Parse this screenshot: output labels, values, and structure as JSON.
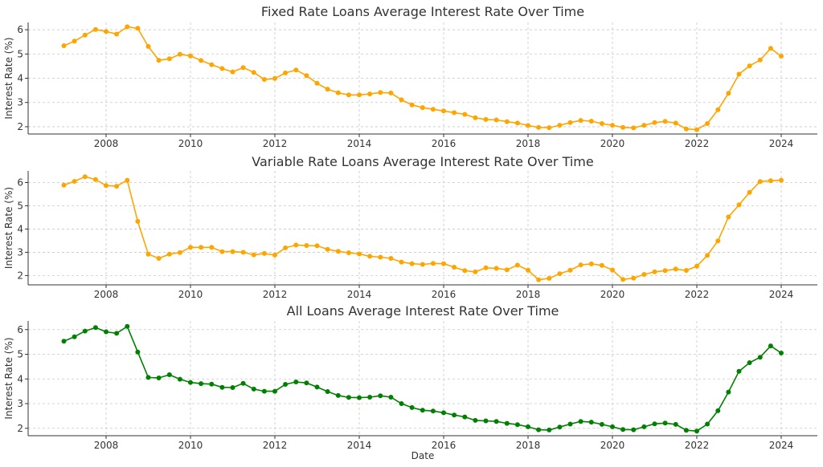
{
  "chart_data": [
    {
      "type": "line",
      "title": "Fixed Rate Loans Average Interest Rate Over Time",
      "xlabel": "",
      "ylabel": "Interest Rate (%)",
      "ylim": [
        1.7,
        6.3
      ],
      "yticks": [
        2,
        3,
        4,
        5,
        6
      ],
      "xticks": [
        "2008",
        "2010",
        "2012",
        "2014",
        "2016",
        "2018",
        "2020",
        "2022",
        "2024"
      ],
      "grid": true,
      "color": "#FFA500",
      "x_start": "2007-01",
      "x_step_months": 3,
      "values": [
        5.34,
        5.53,
        5.78,
        6.01,
        5.93,
        5.82,
        6.12,
        6.06,
        5.31,
        4.74,
        4.8,
        4.99,
        4.92,
        4.73,
        4.56,
        4.4,
        4.26,
        4.44,
        4.24,
        3.95,
        3.99,
        4.22,
        4.34,
        4.11,
        3.79,
        3.55,
        3.4,
        3.31,
        3.31,
        3.35,
        3.41,
        3.39,
        3.11,
        2.9,
        2.79,
        2.72,
        2.65,
        2.58,
        2.51,
        2.37,
        2.3,
        2.28,
        2.21,
        2.15,
        2.05,
        1.97,
        1.96,
        2.06,
        2.17,
        2.26,
        2.23,
        2.13,
        2.06,
        1.97,
        1.95,
        2.06,
        2.17,
        2.22,
        2.15,
        1.91,
        1.88,
        2.13,
        2.7,
        3.38,
        4.17,
        4.51,
        4.75,
        5.23,
        4.91
      ]
    },
    {
      "type": "line",
      "title": "Variable Rate Loans Average Interest Rate Over Time",
      "xlabel": "",
      "ylabel": "Interest Rate (%)",
      "ylim": [
        1.6,
        6.5
      ],
      "yticks": [
        2,
        3,
        4,
        5,
        6
      ],
      "xticks": [
        "2008",
        "2010",
        "2012",
        "2014",
        "2016",
        "2018",
        "2020",
        "2022",
        "2024"
      ],
      "grid": true,
      "color": "#FFA500",
      "x_start": "2007-01",
      "x_step_months": 3,
      "values": [
        5.89,
        6.05,
        6.25,
        6.13,
        5.87,
        5.84,
        6.1,
        4.33,
        2.92,
        2.74,
        2.92,
        2.99,
        3.21,
        3.21,
        3.21,
        3.03,
        3.03,
        3.0,
        2.89,
        2.95,
        2.88,
        3.19,
        3.31,
        3.29,
        3.28,
        3.13,
        3.04,
        2.98,
        2.93,
        2.83,
        2.79,
        2.74,
        2.58,
        2.51,
        2.48,
        2.52,
        2.51,
        2.36,
        2.21,
        2.16,
        2.33,
        2.31,
        2.25,
        2.45,
        2.23,
        1.82,
        1.88,
        2.08,
        2.23,
        2.46,
        2.5,
        2.44,
        2.24,
        1.83,
        1.89,
        2.05,
        2.16,
        2.21,
        2.28,
        2.22,
        2.4,
        2.87,
        3.49,
        4.52,
        5.04,
        5.58,
        6.04,
        6.08,
        6.1
      ]
    },
    {
      "type": "line",
      "title": "All Loans Average Interest Rate Over Time",
      "xlabel": "Date",
      "ylabel": "Interest Rate (%)",
      "ylim": [
        1.7,
        6.35
      ],
      "yticks": [
        2,
        3,
        4,
        5,
        6
      ],
      "xticks": [
        "2008",
        "2010",
        "2012",
        "2014",
        "2016",
        "2018",
        "2020",
        "2022",
        "2024"
      ],
      "grid": true,
      "color": "#008000",
      "x_start": "2007-01",
      "x_step_months": 3,
      "values": [
        5.53,
        5.71,
        5.94,
        6.08,
        5.91,
        5.85,
        6.13,
        5.09,
        4.06,
        4.04,
        4.17,
        3.99,
        3.86,
        3.81,
        3.79,
        3.66,
        3.65,
        3.82,
        3.59,
        3.5,
        3.5,
        3.78,
        3.88,
        3.84,
        3.67,
        3.49,
        3.33,
        3.25,
        3.24,
        3.26,
        3.32,
        3.26,
        3.0,
        2.84,
        2.73,
        2.7,
        2.63,
        2.54,
        2.46,
        2.32,
        2.3,
        2.28,
        2.2,
        2.15,
        2.06,
        1.94,
        1.93,
        2.05,
        2.17,
        2.28,
        2.25,
        2.16,
        2.06,
        1.95,
        1.94,
        2.06,
        2.18,
        2.21,
        2.16,
        1.92,
        1.89,
        2.17,
        2.71,
        3.47,
        4.31,
        4.66,
        4.88,
        5.34,
        5.05
      ]
    }
  ]
}
